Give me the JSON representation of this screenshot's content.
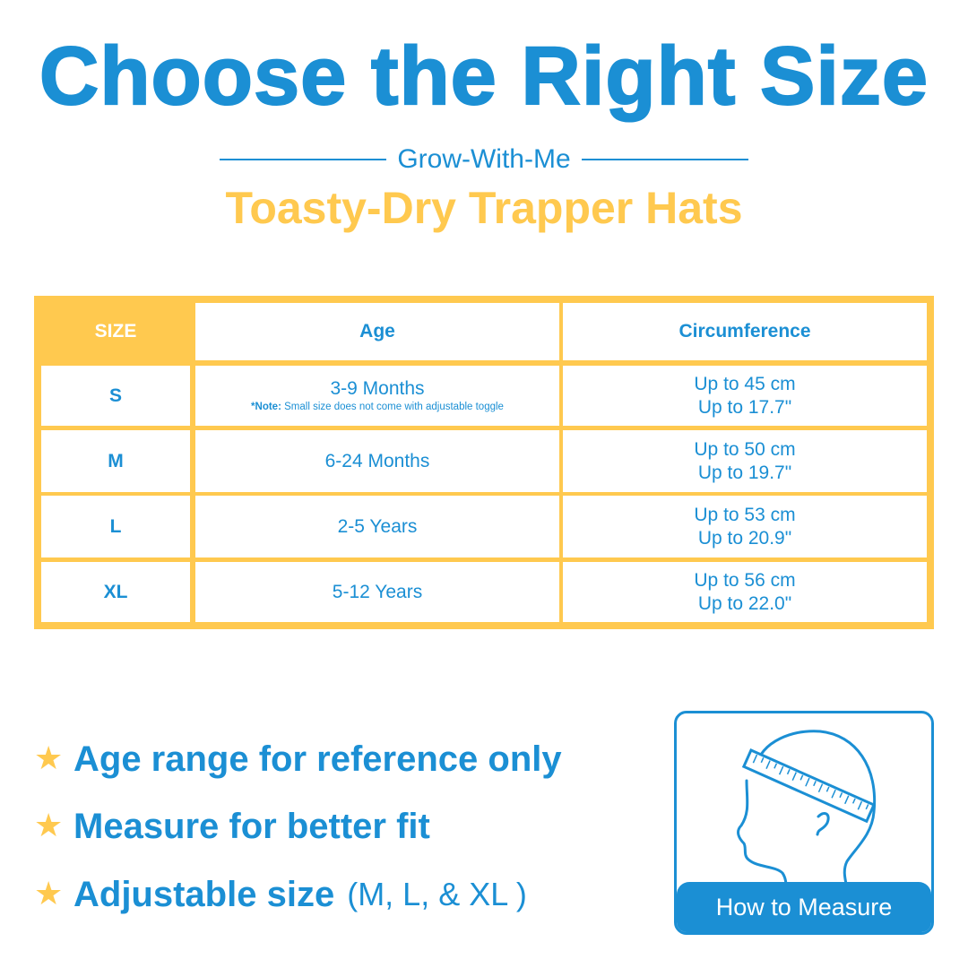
{
  "header": {
    "title": "Choose the Right Size",
    "subtitle": "Grow-With-Me",
    "product": "Toasty-Dry Trapper Hats"
  },
  "table": {
    "columns": [
      "SIZE",
      "Age",
      "Circumference"
    ],
    "rows": [
      {
        "size": "S",
        "age": "3-9 Months",
        "note_label": "*Note:",
        "note": " Small size does not come with adjustable toggle",
        "cm": "Up to 45 cm",
        "in": "Up to 17.7\""
      },
      {
        "size": "M",
        "age": "6-24 Months",
        "cm": "Up to 50 cm",
        "in": "Up to 19.7\""
      },
      {
        "size": "L",
        "age": "2-5 Years",
        "cm": "Up to 53 cm",
        "in": "Up to 20.9\""
      },
      {
        "size": "XL",
        "age": "5-12 Years",
        "cm": "Up to 56 cm",
        "in": "Up to 22.0\""
      }
    ]
  },
  "bullets": [
    {
      "text": "Age range for reference only"
    },
    {
      "text": "Measure for better fit"
    },
    {
      "text": "Adjustable size",
      "extra": "(M, L, & XL )"
    }
  ],
  "measure": {
    "label": "How to Measure",
    "icon": "head-measuring-tape-icon"
  },
  "colors": {
    "blue": "#1b8fd4",
    "yellow": "#ffc94f"
  }
}
